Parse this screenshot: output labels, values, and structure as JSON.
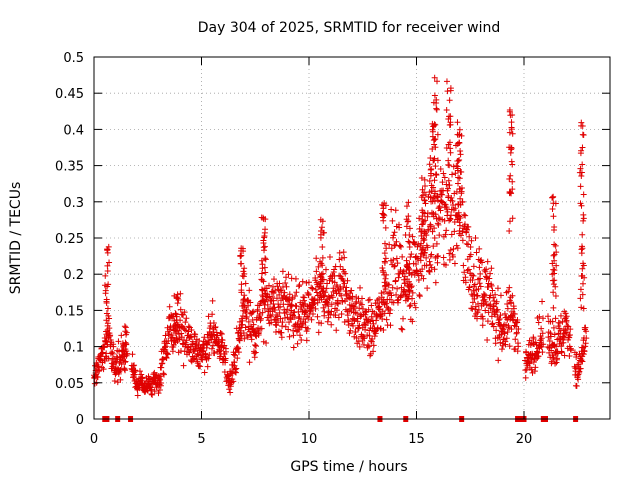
{
  "chart_data": {
    "type": "scatter",
    "title": "Day 304 of 2025, SRMTID for receiver wind",
    "xlabel": "GPS time / hours",
    "ylabel": "SRMTID / TECUs",
    "xlim": [
      0,
      24
    ],
    "ylim": [
      0,
      0.5
    ],
    "x_ticks": [
      0,
      5,
      10,
      15,
      20
    ],
    "x_tick_labels": [
      "0",
      "5",
      "10",
      "15",
      "20"
    ],
    "y_ticks": [
      0,
      0.05,
      0.1,
      0.15,
      0.2,
      0.25,
      0.3,
      0.35,
      0.4,
      0.45,
      0.5
    ],
    "y_tick_labels": [
      "0",
      "0.05",
      "0.1",
      "0.15",
      "0.2",
      "0.25",
      "0.3",
      "0.35",
      "0.4",
      "0.45",
      "0.5"
    ],
    "grid": true,
    "marker": "+",
    "color": "#e00000",
    "series": [
      {
        "name": "SRMTID",
        "trend": {
          "x": [
            0,
            0.3,
            0.7,
            1.0,
            1.5,
            2.0,
            2.5,
            3.0,
            3.5,
            4.0,
            4.5,
            5.0,
            5.5,
            6.0,
            6.3,
            6.7,
            7.0,
            7.5,
            8.0,
            8.5,
            9.0,
            9.5,
            10.0,
            10.5,
            11.0,
            11.5,
            12.0,
            12.5,
            13.0,
            13.5,
            14.0,
            14.5,
            15.0,
            15.5,
            16.0,
            16.5,
            17.0,
            17.5,
            18.0,
            18.5,
            19.0,
            19.5,
            20.0,
            20.5,
            21.0,
            21.5,
            22.0,
            22.5,
            22.9
          ],
          "y": [
            0.06,
            0.08,
            0.12,
            0.07,
            0.1,
            0.05,
            0.045,
            0.05,
            0.12,
            0.13,
            0.1,
            0.09,
            0.12,
            0.09,
            0.05,
            0.1,
            0.15,
            0.12,
            0.17,
            0.15,
            0.16,
            0.14,
            0.15,
            0.17,
            0.16,
            0.19,
            0.15,
            0.13,
            0.12,
            0.17,
            0.22,
            0.18,
            0.22,
            0.25,
            0.27,
            0.29,
            0.3,
            0.2,
            0.18,
            0.16,
            0.12,
            0.15,
            0.07,
            0.1,
            0.12,
            0.1,
            0.13,
            0.06,
            0.12
          ]
        },
        "spikes": [
          {
            "x": 0.6,
            "y_min": 0.08,
            "y_max": 0.24
          },
          {
            "x": 1.4,
            "y_min": 0.06,
            "y_max": 0.12
          },
          {
            "x": 3.8,
            "y_min": 0.1,
            "y_max": 0.18
          },
          {
            "x": 6.9,
            "y_min": 0.15,
            "y_max": 0.26
          },
          {
            "x": 7.9,
            "y_min": 0.15,
            "y_max": 0.28
          },
          {
            "x": 10.6,
            "y_min": 0.16,
            "y_max": 0.28
          },
          {
            "x": 13.5,
            "y_min": 0.18,
            "y_max": 0.3
          },
          {
            "x": 14.6,
            "y_min": 0.17,
            "y_max": 0.3
          },
          {
            "x": 15.3,
            "y_min": 0.2,
            "y_max": 0.35
          },
          {
            "x": 15.7,
            "y_min": 0.3,
            "y_max": 0.41
          },
          {
            "x": 15.9,
            "y_min": 0.3,
            "y_max": 0.48
          },
          {
            "x": 16.5,
            "y_min": 0.35,
            "y_max": 0.47
          },
          {
            "x": 17.0,
            "y_min": 0.25,
            "y_max": 0.41
          },
          {
            "x": 19.4,
            "y_min": 0.25,
            "y_max": 0.43
          },
          {
            "x": 21.4,
            "y_min": 0.12,
            "y_max": 0.31
          },
          {
            "x": 22.7,
            "y_min": 0.15,
            "y_max": 0.41
          }
        ],
        "zero_points_x": [
          0.5,
          0.6,
          1.1,
          1.7,
          13.3,
          14.5,
          17.1,
          19.7,
          19.8,
          20.0,
          20.9,
          21.0,
          22.4
        ]
      }
    ]
  }
}
